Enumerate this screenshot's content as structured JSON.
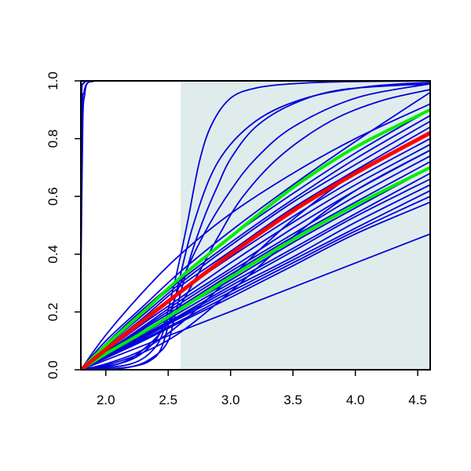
{
  "chart_data": {
    "type": "line",
    "title": "",
    "xlabel": "",
    "ylabel": "",
    "xlim": [
      1.8,
      4.6
    ],
    "ylim": [
      0.0,
      1.0
    ],
    "x_ticks": [
      2.0,
      2.5,
      3.0,
      3.5,
      4.0,
      4.5
    ],
    "x_tick_labels": [
      "2.0",
      "2.5",
      "3.0",
      "3.5",
      "4.0",
      "4.5"
    ],
    "y_ticks": [
      0.0,
      0.2,
      0.4,
      0.6,
      0.8,
      1.0
    ],
    "y_tick_labels": [
      "0.0",
      "0.2",
      "0.4",
      "0.6",
      "0.8",
      "1.0"
    ],
    "shaded_region": {
      "x_from": 2.6,
      "x_to": 4.6,
      "color": "#e0ecec"
    },
    "grid": false,
    "colors": {
      "ensemble": "#0000dd",
      "median": "#ff0000",
      "bounds": "#00ee00"
    },
    "ensemble_curves": [
      {
        "kind": "step",
        "x": [
          1.8,
          1.812,
          1.825,
          1.84,
          1.86,
          1.88,
          1.92,
          2.0,
          4.6
        ],
        "y": [
          0.47,
          0.9,
          0.96,
          0.985,
          0.995,
          0.999,
          1.0,
          1.0,
          1.0
        ]
      },
      {
        "kind": "step",
        "x": [
          1.8,
          1.815,
          1.83,
          1.85,
          1.9,
          2.0,
          4.6
        ],
        "y": [
          0.3,
          0.85,
          0.95,
          0.99,
          0.998,
          1.0,
          1.0
        ]
      },
      {
        "kind": "step",
        "x": [
          1.8,
          1.808,
          1.82,
          1.84,
          1.88,
          4.6
        ],
        "y": [
          0.8,
          0.97,
          0.99,
          0.998,
          1.0,
          1.0
        ]
      },
      {
        "kind": "sigmoid",
        "x": [
          1.8,
          2.1,
          2.3,
          2.45,
          2.55,
          2.65,
          2.75,
          2.85,
          3.0,
          3.2,
          3.5,
          3.9,
          4.6
        ],
        "y": [
          0.0,
          0.02,
          0.06,
          0.14,
          0.3,
          0.5,
          0.72,
          0.85,
          0.94,
          0.975,
          0.99,
          0.997,
          1.0
        ]
      },
      {
        "kind": "sigmoid",
        "x": [
          1.8,
          2.2,
          2.4,
          2.5,
          2.55,
          2.62,
          2.7,
          2.8,
          2.9,
          3.0,
          3.2,
          3.5,
          3.9,
          4.6
        ],
        "y": [
          0.0,
          0.01,
          0.05,
          0.1,
          0.18,
          0.3,
          0.42,
          0.54,
          0.64,
          0.73,
          0.84,
          0.92,
          0.97,
          0.99
        ]
      },
      {
        "kind": "sigmoid",
        "x": [
          1.8,
          2.2,
          2.4,
          2.5,
          2.6,
          2.8,
          3.0,
          3.2,
          3.5,
          4.0,
          4.6
        ],
        "y": [
          0.0,
          0.02,
          0.08,
          0.18,
          0.3,
          0.48,
          0.62,
          0.73,
          0.84,
          0.94,
          0.99
        ]
      },
      {
        "kind": "sigmoid",
        "x": [
          1.8,
          2.0,
          2.2,
          2.35,
          2.45,
          2.55,
          2.7,
          2.9,
          3.2,
          3.6,
          4.1,
          4.6
        ],
        "y": [
          0.0,
          0.0,
          0.01,
          0.03,
          0.08,
          0.24,
          0.5,
          0.72,
          0.86,
          0.94,
          0.98,
          0.995
        ]
      },
      {
        "kind": "sigmoid",
        "x": [
          1.8,
          2.1,
          2.3,
          2.5,
          2.7,
          2.9,
          3.1,
          3.4,
          3.8,
          4.2,
          4.6
        ],
        "y": [
          0.0,
          0.02,
          0.07,
          0.16,
          0.3,
          0.46,
          0.6,
          0.74,
          0.86,
          0.93,
          0.97
        ]
      },
      {
        "kind": "concave",
        "x": [
          1.8,
          2.0,
          2.3,
          2.6,
          3.0,
          3.5,
          4.0,
          4.6
        ],
        "y": [
          0.0,
          0.1,
          0.22,
          0.34,
          0.48,
          0.64,
          0.79,
          0.96
        ]
      },
      {
        "kind": "concave",
        "x": [
          1.8,
          2.0,
          2.3,
          2.6,
          3.0,
          3.5,
          4.0,
          4.6
        ],
        "y": [
          0.0,
          0.09,
          0.21,
          0.32,
          0.46,
          0.61,
          0.75,
          0.9
        ]
      },
      {
        "kind": "concave",
        "x": [
          1.8,
          2.0,
          2.3,
          2.6,
          3.0,
          3.5,
          4.0,
          4.6
        ],
        "y": [
          0.0,
          0.085,
          0.2,
          0.31,
          0.44,
          0.59,
          0.73,
          0.88
        ]
      },
      {
        "kind": "concave",
        "x": [
          1.8,
          2.0,
          2.3,
          2.6,
          3.0,
          3.5,
          4.0,
          4.6
        ],
        "y": [
          0.0,
          0.08,
          0.19,
          0.3,
          0.43,
          0.58,
          0.71,
          0.86
        ]
      },
      {
        "kind": "concave",
        "x": [
          1.8,
          2.0,
          2.3,
          2.6,
          3.0,
          3.5,
          4.0,
          4.6
        ],
        "y": [
          0.0,
          0.075,
          0.18,
          0.29,
          0.41,
          0.56,
          0.69,
          0.84
        ]
      },
      {
        "kind": "concave",
        "x": [
          1.8,
          2.0,
          2.3,
          2.6,
          3.0,
          3.5,
          4.0,
          4.6
        ],
        "y": [
          0.0,
          0.07,
          0.17,
          0.27,
          0.39,
          0.53,
          0.66,
          0.8
        ]
      },
      {
        "kind": "concave",
        "x": [
          1.8,
          2.0,
          2.3,
          2.6,
          3.0,
          3.5,
          4.0,
          4.6
        ],
        "y": [
          0.0,
          0.065,
          0.16,
          0.25,
          0.37,
          0.51,
          0.64,
          0.78
        ]
      },
      {
        "kind": "concave",
        "x": [
          1.8,
          2.0,
          2.3,
          2.6,
          3.0,
          3.5,
          4.0,
          4.6
        ],
        "y": [
          0.0,
          0.06,
          0.15,
          0.24,
          0.35,
          0.49,
          0.62,
          0.76
        ]
      },
      {
        "kind": "concave",
        "x": [
          1.8,
          2.0,
          2.3,
          2.6,
          3.0,
          3.5,
          4.0,
          4.6
        ],
        "y": [
          0.0,
          0.058,
          0.145,
          0.23,
          0.34,
          0.47,
          0.6,
          0.74
        ]
      },
      {
        "kind": "concave",
        "x": [
          1.8,
          2.0,
          2.3,
          2.6,
          3.0,
          3.5,
          4.0,
          4.6
        ],
        "y": [
          0.0,
          0.055,
          0.14,
          0.22,
          0.33,
          0.46,
          0.58,
          0.72
        ]
      },
      {
        "kind": "concave",
        "x": [
          1.8,
          2.0,
          2.3,
          2.6,
          3.0,
          3.5,
          4.0,
          4.6
        ],
        "y": [
          0.0,
          0.052,
          0.13,
          0.21,
          0.31,
          0.44,
          0.56,
          0.7
        ]
      },
      {
        "kind": "concave",
        "x": [
          1.8,
          2.0,
          2.3,
          2.6,
          3.0,
          3.5,
          4.0,
          4.6
        ],
        "y": [
          0.0,
          0.05,
          0.125,
          0.2,
          0.3,
          0.42,
          0.54,
          0.68
        ]
      },
      {
        "kind": "concave",
        "x": [
          1.8,
          2.0,
          2.3,
          2.6,
          3.0,
          3.5,
          4.0,
          4.6
        ],
        "y": [
          0.0,
          0.048,
          0.12,
          0.19,
          0.29,
          0.41,
          0.53,
          0.66
        ]
      },
      {
        "kind": "concave",
        "x": [
          1.8,
          2.0,
          2.3,
          2.6,
          3.0,
          3.5,
          4.0,
          4.6
        ],
        "y": [
          0.0,
          0.046,
          0.115,
          0.185,
          0.28,
          0.39,
          0.51,
          0.64
        ]
      },
      {
        "kind": "concave",
        "x": [
          1.8,
          2.0,
          2.3,
          2.6,
          3.0,
          3.5,
          4.0,
          4.6
        ],
        "y": [
          0.0,
          0.044,
          0.11,
          0.18,
          0.27,
          0.38,
          0.49,
          0.62
        ]
      },
      {
        "kind": "concave",
        "x": [
          1.8,
          2.0,
          2.3,
          2.6,
          3.0,
          3.5,
          4.0,
          4.6
        ],
        "y": [
          0.0,
          0.042,
          0.105,
          0.17,
          0.26,
          0.37,
          0.48,
          0.6
        ]
      },
      {
        "kind": "concave",
        "x": [
          1.8,
          2.0,
          2.3,
          2.6,
          3.0,
          3.5,
          4.0,
          4.6
        ],
        "y": [
          0.0,
          0.04,
          0.1,
          0.165,
          0.25,
          0.36,
          0.47,
          0.58
        ]
      },
      {
        "kind": "concave",
        "x": [
          1.8,
          2.0,
          2.3,
          2.6,
          3.0,
          3.5,
          4.0,
          4.6
        ],
        "y": [
          0.0,
          0.02,
          0.07,
          0.16,
          0.32,
          0.52,
          0.68,
          0.82
        ]
      },
      {
        "kind": "concave",
        "x": [
          1.8,
          2.0,
          2.3,
          2.6,
          3.0,
          3.5,
          4.0,
          4.6
        ],
        "y": [
          0.0,
          0.015,
          0.06,
          0.13,
          0.27,
          0.46,
          0.62,
          0.76
        ]
      },
      {
        "kind": "concave",
        "x": [
          1.8,
          2.0,
          2.3,
          2.6,
          3.0,
          3.5,
          4.0,
          4.6
        ],
        "y": [
          0.0,
          0.12,
          0.27,
          0.4,
          0.54,
          0.68,
          0.8,
          0.92
        ]
      },
      {
        "kind": "linear",
        "x": [
          1.8,
          4.6
        ],
        "y": [
          0.0,
          0.47
        ]
      }
    ],
    "series": [
      {
        "name": "",
        "color": "#ff0000",
        "x": [
          1.8,
          2.0,
          2.3,
          2.6,
          3.0,
          3.5,
          4.0,
          4.6
        ],
        "y": [
          0.0,
          0.07,
          0.17,
          0.27,
          0.4,
          0.55,
          0.68,
          0.82
        ]
      },
      {
        "name": "",
        "color": "#00ee00",
        "x": [
          1.8,
          2.0,
          2.3,
          2.6,
          3.0,
          3.5,
          4.0,
          4.6
        ],
        "y": [
          0.0,
          0.085,
          0.2,
          0.32,
          0.46,
          0.63,
          0.77,
          0.9
        ]
      },
      {
        "name": "",
        "color": "#00ee00",
        "x": [
          1.8,
          2.0,
          2.3,
          2.6,
          3.0,
          3.5,
          4.0,
          4.6
        ],
        "y": [
          0.0,
          0.055,
          0.13,
          0.21,
          0.32,
          0.45,
          0.57,
          0.7
        ]
      }
    ]
  }
}
